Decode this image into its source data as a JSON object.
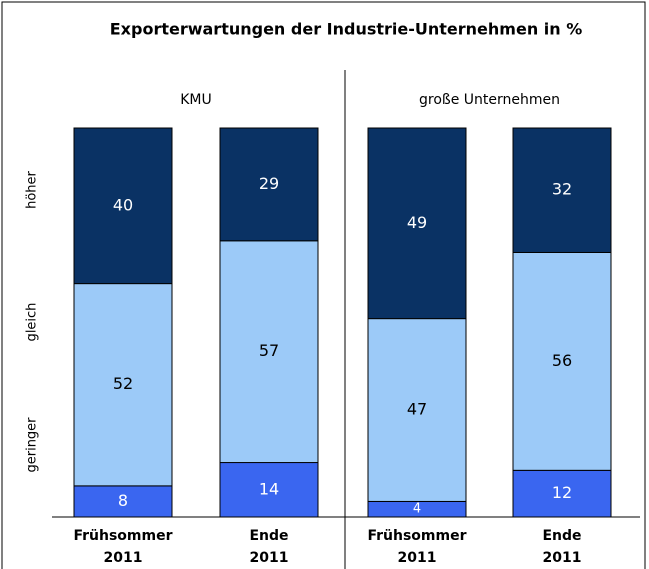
{
  "chart_data": {
    "type": "stacked-bar",
    "title": "Exporterwartungen der Industrie-Unternehmen in %",
    "groups": [
      "KMU",
      "große Unternehmen"
    ],
    "categories": [
      [
        "Frühsommer",
        "2011"
      ],
      [
        "Ende",
        "2011"
      ],
      [
        "Frühsommer",
        "2011"
      ],
      [
        "Ende",
        "2011"
      ]
    ],
    "series": [
      {
        "name": "geringer",
        "color": "#3a66f0",
        "label_color": "#ffffff",
        "values": [
          8,
          14,
          4,
          12
        ]
      },
      {
        "name": "gleich",
        "color": "#9ccaf8",
        "label_color": "#000000",
        "values": [
          52,
          57,
          47,
          56
        ]
      },
      {
        "name": "höher",
        "color": "#0a3264",
        "label_color": "#ffffff",
        "values": [
          40,
          29,
          49,
          32
        ]
      }
    ]
  }
}
